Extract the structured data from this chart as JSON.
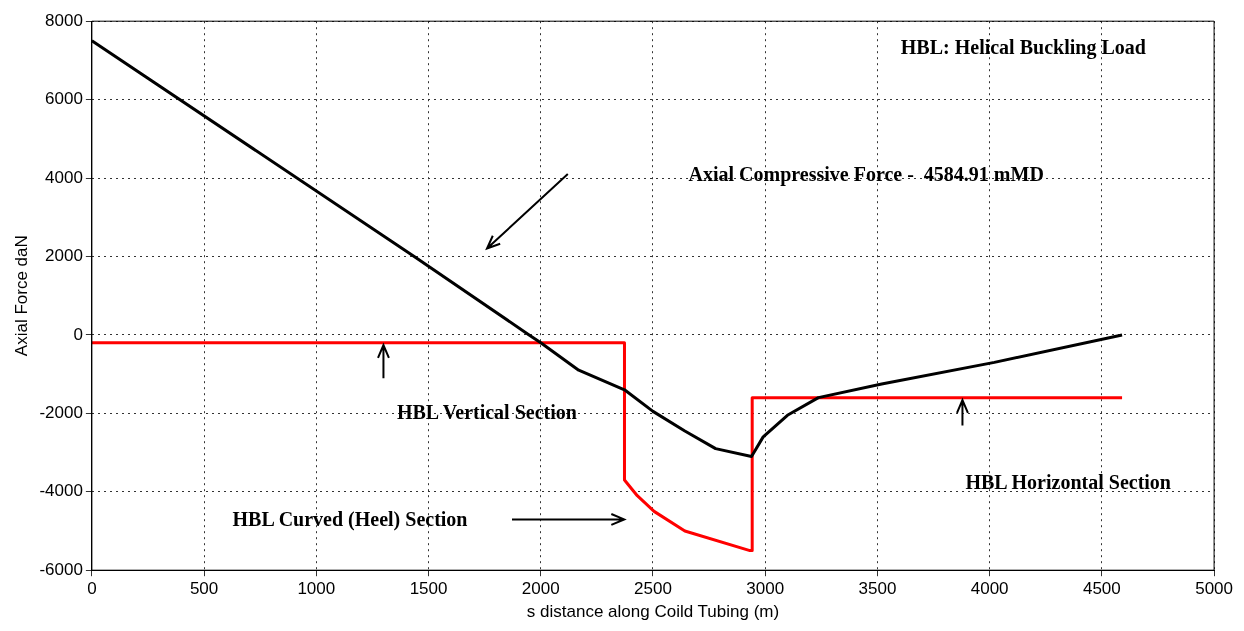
{
  "chart_data": {
    "type": "line",
    "xlabel": "s distance along Coild Tubing (m)",
    "ylabel": "Axial Force daN",
    "xlim": [
      0,
      5000
    ],
    "xticks": [
      0,
      500,
      1000,
      1500,
      2000,
      2500,
      3000,
      3500,
      4000,
      4500,
      5000
    ],
    "ylim": [
      -6000,
      8000
    ],
    "yticks": [
      -6000,
      -4000,
      -2000,
      0,
      2000,
      4000,
      6000,
      8000
    ],
    "grid": true,
    "legend": false,
    "marker": "none",
    "line_style": "solid",
    "series": [
      {
        "color": "#000000",
        "x": [
          0,
          1436,
          1948,
          2000,
          2169,
          2373,
          2500,
          2642,
          2779,
          2939,
          2991,
          3099,
          3237,
          3519,
          4021,
          4590
        ],
        "values": [
          7500,
          2000,
          0,
          -200,
          -900,
          -1400,
          -1950,
          -2450,
          -2900,
          -3100,
          -2600,
          -2050,
          -1600,
          -1250,
          -700,
          0
        ]
      },
      {
        "color": "#ff0000",
        "x": [
          0,
          2373,
          2373,
          2430,
          2505,
          2642,
          2932,
          2942,
          2942,
          4590
        ],
        "values": [
          -200,
          -200,
          -3700,
          -4100,
          -4500,
          -5000,
          -5500,
          -5500,
          -1600,
          -1600
        ]
      }
    ],
    "annotations": [
      "HBL: Helical Buckling Load",
      "Axial Compressive Force -  4584.91 mMD",
      "HBL Vertical Section",
      "HBL Curved (Heel) Section",
      "HBL Horizontal Section"
    ]
  }
}
